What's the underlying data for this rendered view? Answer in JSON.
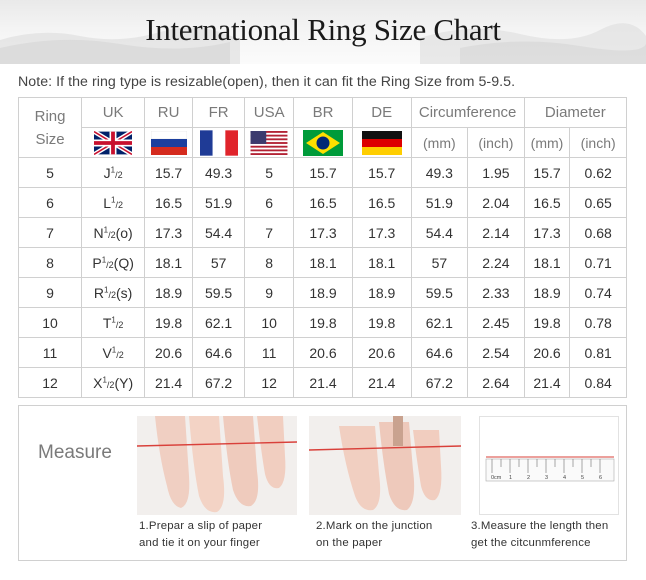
{
  "title": "International Ring Size Chart",
  "note": "Note: If the ring type is resizable(open), then it can fit the Ring Size from 5-9.5.",
  "columns": {
    "ring_size": "Ring Size",
    "uk": "UK",
    "ru": "RU",
    "fr": "FR",
    "usa": "USA",
    "br": "BR",
    "de": "DE",
    "circumference": "Circumference",
    "diameter": "Diameter",
    "circ_mm": "(mm)",
    "circ_inch": "(inch)",
    "dia_mm": "(mm)",
    "dia_inch": "(inch)"
  },
  "flags": {
    "uk": "uk-flag-icon",
    "ru": "russia-flag-icon",
    "fr": "france-flag-icon",
    "usa": "usa-flag-icon",
    "br": "brazil-flag-icon",
    "de": "germany-flag-icon"
  },
  "rows": [
    {
      "size": "5",
      "uk": "J",
      "uk_suffix": "",
      "ru": "15.7",
      "fr": "49.3",
      "usa": "5",
      "br": "15.7",
      "de": "15.7",
      "circ_mm": "49.3",
      "circ_inch": "1.95",
      "dia_mm": "15.7",
      "dia_inch": "0.62"
    },
    {
      "size": "6",
      "uk": "L",
      "uk_suffix": "",
      "ru": "16.5",
      "fr": "51.9",
      "usa": "6",
      "br": "16.5",
      "de": "16.5",
      "circ_mm": "51.9",
      "circ_inch": "2.04",
      "dia_mm": "16.5",
      "dia_inch": "0.65"
    },
    {
      "size": "7",
      "uk": "N",
      "uk_suffix": "(o)",
      "ru": "17.3",
      "fr": "54.4",
      "usa": "7",
      "br": "17.3",
      "de": "17.3",
      "circ_mm": "54.4",
      "circ_inch": "2.14",
      "dia_mm": "17.3",
      "dia_inch": "0.68"
    },
    {
      "size": "8",
      "uk": "P",
      "uk_suffix": "(Q)",
      "ru": "18.1",
      "fr": "57",
      "usa": "8",
      "br": "18.1",
      "de": "18.1",
      "circ_mm": "57",
      "circ_inch": "2.24",
      "dia_mm": "18.1",
      "dia_inch": "0.71"
    },
    {
      "size": "9",
      "uk": "R",
      "uk_suffix": "(s)",
      "ru": "18.9",
      "fr": "59.5",
      "usa": "9",
      "br": "18.9",
      "de": "18.9",
      "circ_mm": "59.5",
      "circ_inch": "2.33",
      "dia_mm": "18.9",
      "dia_inch": "0.74"
    },
    {
      "size": "10",
      "uk": "T",
      "uk_suffix": "",
      "ru": "19.8",
      "fr": "62.1",
      "usa": "10",
      "br": "19.8",
      "de": "19.8",
      "circ_mm": "62.1",
      "circ_inch": "2.45",
      "dia_mm": "19.8",
      "dia_inch": "0.78"
    },
    {
      "size": "11",
      "uk": "V",
      "uk_suffix": "",
      "ru": "20.6",
      "fr": "64.6",
      "usa": "11",
      "br": "20.6",
      "de": "20.6",
      "circ_mm": "64.6",
      "circ_inch": "2.54",
      "dia_mm": "20.6",
      "dia_inch": "0.81"
    },
    {
      "size": "12",
      "uk": "X",
      "uk_suffix": "(Y)",
      "ru": "21.4",
      "fr": "67.2",
      "usa": "12",
      "br": "21.4",
      "de": "21.4",
      "circ_mm": "67.2",
      "circ_inch": "2.64",
      "dia_mm": "21.4",
      "dia_inch": "0.84"
    }
  ],
  "uk_fraction": {
    "num": "1",
    "den": "2"
  },
  "measure": {
    "label": "Measure",
    "steps": [
      {
        "line1": "1.Prepar a slip of paper",
        "line2": "and tie it on your finger"
      },
      {
        "line1": "2.Mark on the junction",
        "line2": "on the paper"
      },
      {
        "line1": "3.Measure the length then",
        "line2": "get the citcunmference"
      }
    ],
    "ruler_labels": [
      "0cm",
      "1",
      "2",
      "3",
      "4",
      "5",
      "6"
    ]
  },
  "colors": {
    "string": "#d9403a",
    "grid": "#d0d0d0",
    "header_text": "#7a7a7a"
  }
}
